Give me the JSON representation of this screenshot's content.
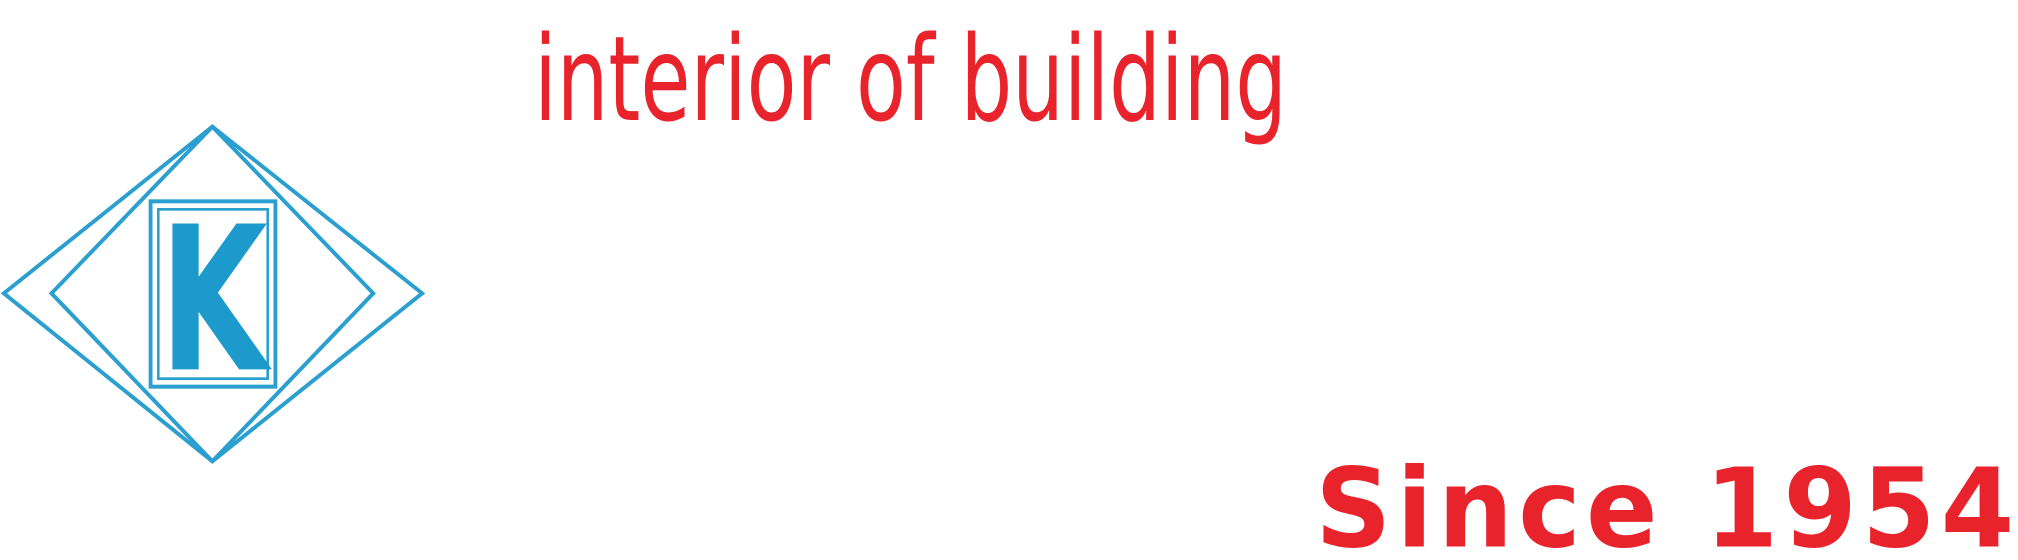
{
  "logo": {
    "letter": "K"
  },
  "tagline": "interior of building",
  "since": "Since 1954"
}
